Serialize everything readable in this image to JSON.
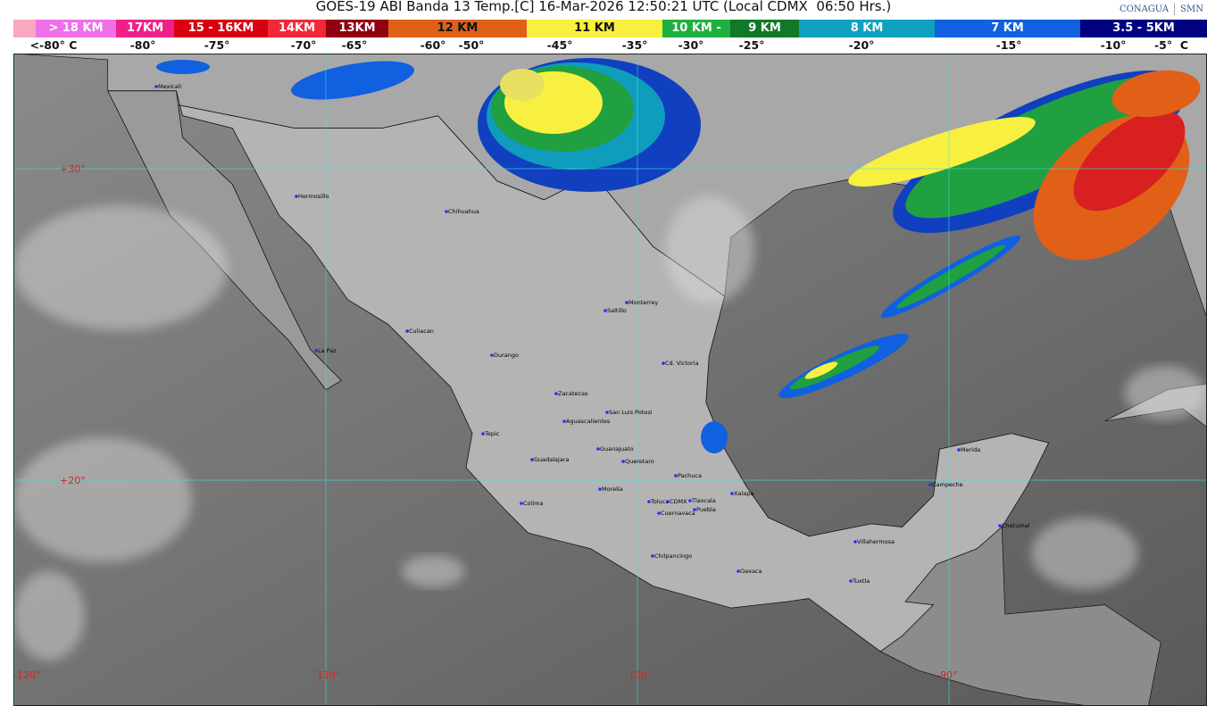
{
  "title": "GOES-19 ABI Banda 13 Temp.[C] 16-Mar-2026 12:50:21 UTC (Local CDMX  06:50 Hrs.)",
  "logos": [
    "CONAGUA",
    "SMN"
  ],
  "legend": {
    "segments": [
      {
        "label": "> 18 KM",
        "color": "#f070e8"
      },
      {
        "label": "17KM",
        "color": "#f0208a"
      },
      {
        "label": "15 - 16KM",
        "color": "#d80010"
      },
      {
        "label": "14KM",
        "color": "#f02838"
      },
      {
        "label": "13KM",
        "color": "#900010"
      },
      {
        "label": "12 KM",
        "color": "#e06018"
      },
      {
        "label": "11 KM",
        "color": "#f8f040"
      },
      {
        "label": "10 KM -",
        "color": "#20b040"
      },
      {
        "label": "9 KM",
        "color": "#107828"
      },
      {
        "label": "8 KM",
        "color": "#10a0c0"
      },
      {
        "label": "7 KM",
        "color": "#1060e0"
      },
      {
        "label": "3.5 - 5KM",
        "color": "#000080"
      }
    ],
    "temperatures": [
      "<-80° C",
      "-80°",
      "-75°",
      "-70°",
      "-65°",
      "-60°",
      "-50°",
      "-45°",
      "-35°",
      "-30°",
      "-25°",
      "-20°",
      "-15°",
      "-10°",
      "-5°  C"
    ]
  },
  "map": {
    "latitudes": [
      "+30°",
      "+20°"
    ],
    "longitudes": [
      "-120°",
      "-110°",
      "-100°",
      "-90°"
    ],
    "cities": [
      "Mexicali",
      "Hermosillo",
      "Chihuahua",
      "Saltillo",
      "Monterrey",
      "Culiacan",
      "La Paz",
      "Durango",
      "Cd. Victoria",
      "Zacatecas",
      "San Luis Potosi",
      "Aguascalientes",
      "Tepic",
      "Guanajuato",
      "Guadalajara",
      "Queretaro",
      "Pachuca",
      "Xalapa",
      "Morelia",
      "Colima",
      "Toluca",
      "CDMX",
      "Tlaxcala",
      "Puebla",
      "Cuernavaca",
      "Chilpancingo",
      "Oaxaca",
      "Villahermosa",
      "Tuxtla",
      "Merida",
      "Campeche",
      "Chetumal"
    ]
  }
}
